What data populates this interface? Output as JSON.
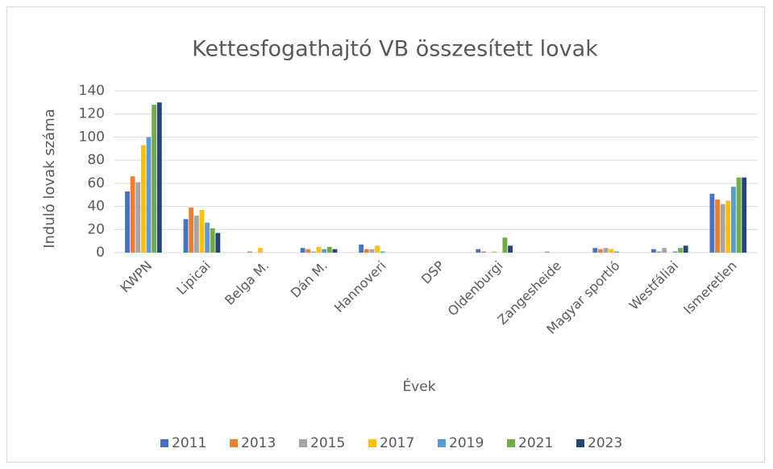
{
  "chart_data": {
    "type": "bar",
    "title": "Kettesfogathajtó VB összesített lovak",
    "x_label": "Évek",
    "y_label": "Induló lovak száma",
    "categories": [
      "KWPN",
      "Lipicai",
      "Belga M.",
      "Dán M.",
      "Hannoveri",
      "DSP",
      "Oldenburgi",
      "Zangesheide",
      "Magyar sportló",
      "Westfáliai",
      "Ismeretlen"
    ],
    "series": [
      {
        "name": "2011",
        "color": "#4472c4",
        "values": [
          53,
          29,
          0,
          4,
          7,
          0,
          3,
          0,
          4,
          3,
          51
        ]
      },
      {
        "name": "2013",
        "color": "#ed7d31",
        "values": [
          66,
          39,
          1,
          3,
          3,
          0,
          1,
          0,
          3,
          1,
          46
        ]
      },
      {
        "name": "2015",
        "color": "#a5a5a5",
        "values": [
          61,
          32,
          0,
          1,
          3,
          0,
          0,
          1,
          4,
          4,
          42
        ]
      },
      {
        "name": "2017",
        "color": "#ffc000",
        "values": [
          93,
          37,
          4,
          5,
          6,
          0,
          1,
          0,
          3,
          0,
          45
        ]
      },
      {
        "name": "2019",
        "color": "#5b9bd5",
        "values": [
          100,
          26,
          0,
          3,
          1,
          0,
          0,
          0,
          1,
          1,
          57
        ]
      },
      {
        "name": "2021",
        "color": "#70ad47",
        "values": [
          128,
          21,
          0,
          5,
          0,
          0,
          13,
          0,
          0,
          4,
          65
        ]
      },
      {
        "name": "2023",
        "color": "#264478",
        "values": [
          130,
          17,
          0,
          3,
          0,
          0,
          6,
          0,
          0,
          6,
          65
        ]
      }
    ],
    "ylim": [
      0,
      140
    ],
    "yticks": [
      0,
      20,
      40,
      60,
      80,
      100,
      120,
      140
    ],
    "grid": true,
    "legend": "bottom"
  }
}
